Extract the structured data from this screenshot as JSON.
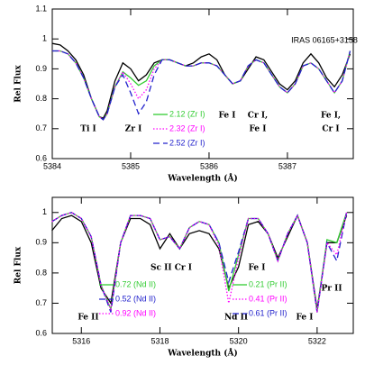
{
  "chart_data": [
    {
      "type": "line",
      "xlabel": "Wavelength (Å)",
      "ylabel": "Rel Flux",
      "annotation": "IRAS 06165+3158",
      "xlim": [
        5384,
        5387.84
      ],
      "ylim": [
        0.6,
        1.1
      ],
      "xticks": [
        5384,
        5385,
        5386,
        5387
      ],
      "yticks": [
        0.6,
        0.7,
        0.8,
        0.9,
        1,
        1.1
      ],
      "line_labels": [
        "Ti I",
        "Zr I",
        "Fe I",
        "Cr I,",
        "Fe I",
        "Fe I,",
        "Cr I"
      ],
      "x": [
        5384.0,
        5384.1,
        5384.2,
        5384.3,
        5384.4,
        5384.5,
        5384.6,
        5384.65,
        5384.7,
        5384.8,
        5384.9,
        5385.0,
        5385.1,
        5385.2,
        5385.3,
        5385.4,
        5385.5,
        5385.6,
        5385.7,
        5385.8,
        5385.9,
        5386.0,
        5386.1,
        5386.2,
        5386.3,
        5386.4,
        5386.5,
        5386.6,
        5386.7,
        5386.8,
        5386.9,
        5387.0,
        5387.1,
        5387.2,
        5387.3,
        5387.4,
        5387.5,
        5387.6,
        5387.7,
        5387.8
      ],
      "series": [
        {
          "name": null,
          "color": "#000000",
          "dash": "solid",
          "values": [
            0.985,
            0.98,
            0.96,
            0.93,
            0.88,
            0.8,
            0.74,
            0.735,
            0.76,
            0.86,
            0.92,
            0.9,
            0.86,
            0.88,
            0.92,
            0.93,
            0.93,
            0.92,
            0.91,
            0.92,
            0.94,
            0.95,
            0.93,
            0.88,
            0.85,
            0.86,
            0.9,
            0.94,
            0.93,
            0.89,
            0.85,
            0.83,
            0.86,
            0.92,
            0.95,
            0.92,
            0.87,
            0.84,
            0.88,
            0.95
          ]
        },
        {
          "name": "2.12 (Zr I)",
          "color": "#33cc33",
          "dash": "solid",
          "values": [
            0.96,
            0.96,
            0.95,
            0.92,
            0.87,
            0.8,
            0.74,
            0.73,
            0.75,
            0.84,
            0.89,
            0.87,
            0.845,
            0.86,
            0.91,
            0.93,
            0.93,
            0.92,
            0.91,
            0.91,
            0.92,
            0.92,
            0.91,
            0.88,
            0.85,
            0.86,
            0.91,
            0.93,
            0.92,
            0.88,
            0.84,
            0.82,
            0.85,
            0.91,
            0.92,
            0.9,
            0.86,
            0.82,
            0.86,
            0.96
          ]
        },
        {
          "name": "2.32 (Zr I)",
          "color": "#ff00ff",
          "dash": "dotted",
          "values": [
            0.96,
            0.96,
            0.95,
            0.92,
            0.87,
            0.8,
            0.74,
            0.73,
            0.75,
            0.84,
            0.89,
            0.85,
            0.8,
            0.83,
            0.9,
            0.93,
            0.93,
            0.92,
            0.91,
            0.91,
            0.92,
            0.92,
            0.91,
            0.88,
            0.85,
            0.86,
            0.91,
            0.93,
            0.92,
            0.88,
            0.84,
            0.82,
            0.85,
            0.91,
            0.92,
            0.9,
            0.86,
            0.82,
            0.86,
            0.96
          ]
        },
        {
          "name": "2.52 (Zr I)",
          "color": "#2222cc",
          "dash": "dashed",
          "values": [
            0.96,
            0.96,
            0.95,
            0.92,
            0.87,
            0.8,
            0.74,
            0.73,
            0.75,
            0.84,
            0.88,
            0.82,
            0.75,
            0.79,
            0.88,
            0.93,
            0.93,
            0.92,
            0.91,
            0.91,
            0.92,
            0.92,
            0.91,
            0.88,
            0.85,
            0.86,
            0.91,
            0.93,
            0.92,
            0.88,
            0.84,
            0.82,
            0.85,
            0.91,
            0.92,
            0.9,
            0.86,
            0.82,
            0.86,
            0.96
          ]
        }
      ]
    },
    {
      "type": "line",
      "xlabel": "Wavelength (Å)",
      "ylabel": "Rel Flux",
      "xlim": [
        5315.26,
        5322.92
      ],
      "ylim": [
        0.6,
        1.05
      ],
      "xticks": [
        5316,
        5318,
        5320,
        5322
      ],
      "yticks": [
        0.6,
        0.7,
        0.8,
        0.9,
        1
      ],
      "line_labels": [
        "Sc II Cr I",
        "Fe I",
        "Pr II",
        "Fe II",
        "Nd II",
        "Fe I"
      ],
      "legend2": [
        {
          "label": "0.21 (Pr II)",
          "color": "#33cc33",
          "dash": "solid"
        },
        {
          "label": "0.41 (Pr II)",
          "color": "#ff00ff",
          "dash": "dotted"
        },
        {
          "label": "0.61 (Pr II)",
          "color": "#2222cc",
          "dash": "dashed"
        }
      ],
      "x": [
        5315.25,
        5315.5,
        5315.75,
        5316.0,
        5316.25,
        5316.5,
        5316.75,
        5317.0,
        5317.25,
        5317.5,
        5317.75,
        5318.0,
        5318.25,
        5318.5,
        5318.75,
        5319.0,
        5319.25,
        5319.5,
        5319.75,
        5320.0,
        5320.25,
        5320.5,
        5320.75,
        5321.0,
        5321.25,
        5321.5,
        5321.75,
        5322.0,
        5322.25,
        5322.5,
        5322.75
      ],
      "series": [
        {
          "name": null,
          "color": "#000000",
          "dash": "solid",
          "values": [
            0.94,
            0.98,
            0.99,
            0.97,
            0.9,
            0.75,
            0.7,
            0.9,
            0.98,
            0.98,
            0.96,
            0.88,
            0.93,
            0.88,
            0.93,
            0.94,
            0.93,
            0.88,
            0.75,
            0.82,
            0.96,
            0.97,
            0.93,
            0.85,
            0.92,
            0.99,
            0.9,
            0.68,
            0.9,
            0.9,
            0.99
          ]
        },
        {
          "name": "0.72 (Nd II)",
          "color": "#33cc33",
          "dash": "solid",
          "values": [
            0.97,
            0.99,
            1.0,
            0.98,
            0.92,
            0.76,
            0.68,
            0.9,
            0.99,
            0.99,
            0.98,
            0.91,
            0.92,
            0.88,
            0.95,
            0.97,
            0.96,
            0.9,
            0.74,
            0.86,
            0.98,
            0.98,
            0.93,
            0.84,
            0.93,
            0.99,
            0.9,
            0.67,
            0.91,
            0.9,
            1.0
          ]
        },
        {
          "name": "0.52 (Nd II)",
          "color": "#2222cc",
          "dash": "dashed",
          "values": [
            0.97,
            0.99,
            1.0,
            0.98,
            0.92,
            0.76,
            0.67,
            0.9,
            0.99,
            0.99,
            0.98,
            0.91,
            0.92,
            0.88,
            0.95,
            0.97,
            0.96,
            0.9,
            0.77,
            0.87,
            0.98,
            0.98,
            0.93,
            0.84,
            0.93,
            0.99,
            0.9,
            0.67,
            0.9,
            0.84,
            1.0
          ]
        },
        {
          "name": "0.92 (Nd II)",
          "color": "#ff00ff",
          "dash": "dotted",
          "values": [
            0.97,
            0.99,
            1.0,
            0.98,
            0.92,
            0.76,
            0.68,
            0.9,
            0.99,
            0.99,
            0.98,
            0.91,
            0.92,
            0.88,
            0.95,
            0.97,
            0.96,
            0.89,
            0.7,
            0.85,
            0.98,
            0.98,
            0.93,
            0.84,
            0.93,
            0.99,
            0.9,
            0.67,
            0.9,
            0.86,
            1.0
          ]
        }
      ]
    }
  ]
}
